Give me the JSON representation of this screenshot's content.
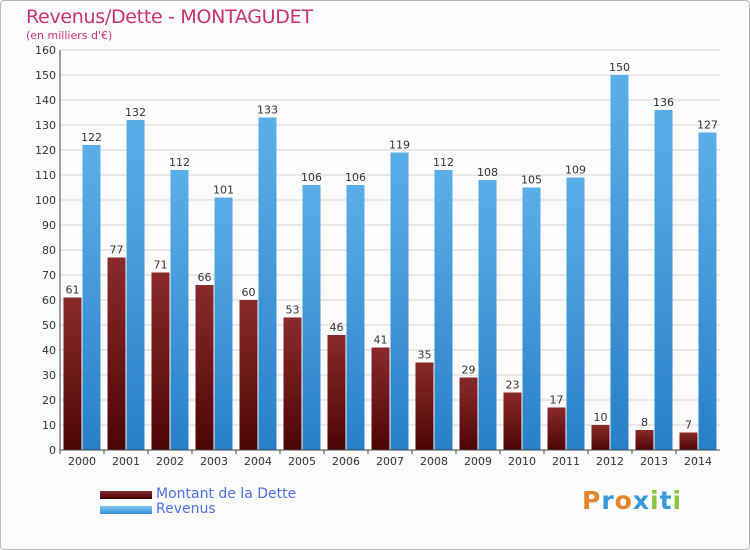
{
  "title": "Revenus/Dette - MONTAGUDET",
  "subtitle": "(en milliers d'€)",
  "logo": [
    "P",
    "r",
    "o",
    "x",
    "i",
    "t",
    "i"
  ],
  "colors": {
    "dette_top": "#8a2a2a",
    "dette_bottom": "#4d0505",
    "revenus_top": "#5aaee8",
    "revenus_bottom": "#2a80c8",
    "title": "#c8316e",
    "legend_text": "#4f6fe3"
  },
  "legend": [
    {
      "label": "Montant de la Dette",
      "color": "#6b1515"
    },
    {
      "label": "Revenus",
      "color": "#4aa0e0"
    }
  ],
  "chart_data": {
    "type": "bar",
    "categories": [
      "2000",
      "2001",
      "2002",
      "2003",
      "2004",
      "2005",
      "2006",
      "2007",
      "2008",
      "2009",
      "2010",
      "2011",
      "2012",
      "2013",
      "2014"
    ],
    "series": [
      {
        "name": "Montant de la Dette",
        "values": [
          61,
          77,
          71,
          66,
          60,
          53,
          46,
          41,
          35,
          29,
          23,
          17,
          10,
          8,
          7
        ]
      },
      {
        "name": "Revenus",
        "values": [
          122,
          132,
          112,
          101,
          133,
          106,
          106,
          119,
          112,
          108,
          105,
          109,
          150,
          136,
          127
        ]
      }
    ],
    "ylim": [
      0,
      160
    ],
    "yticks": [
      0,
      10,
      20,
      30,
      40,
      50,
      60,
      70,
      80,
      90,
      100,
      110,
      120,
      130,
      140,
      150,
      160
    ],
    "grid": true,
    "legend_position": "bottom-left"
  }
}
